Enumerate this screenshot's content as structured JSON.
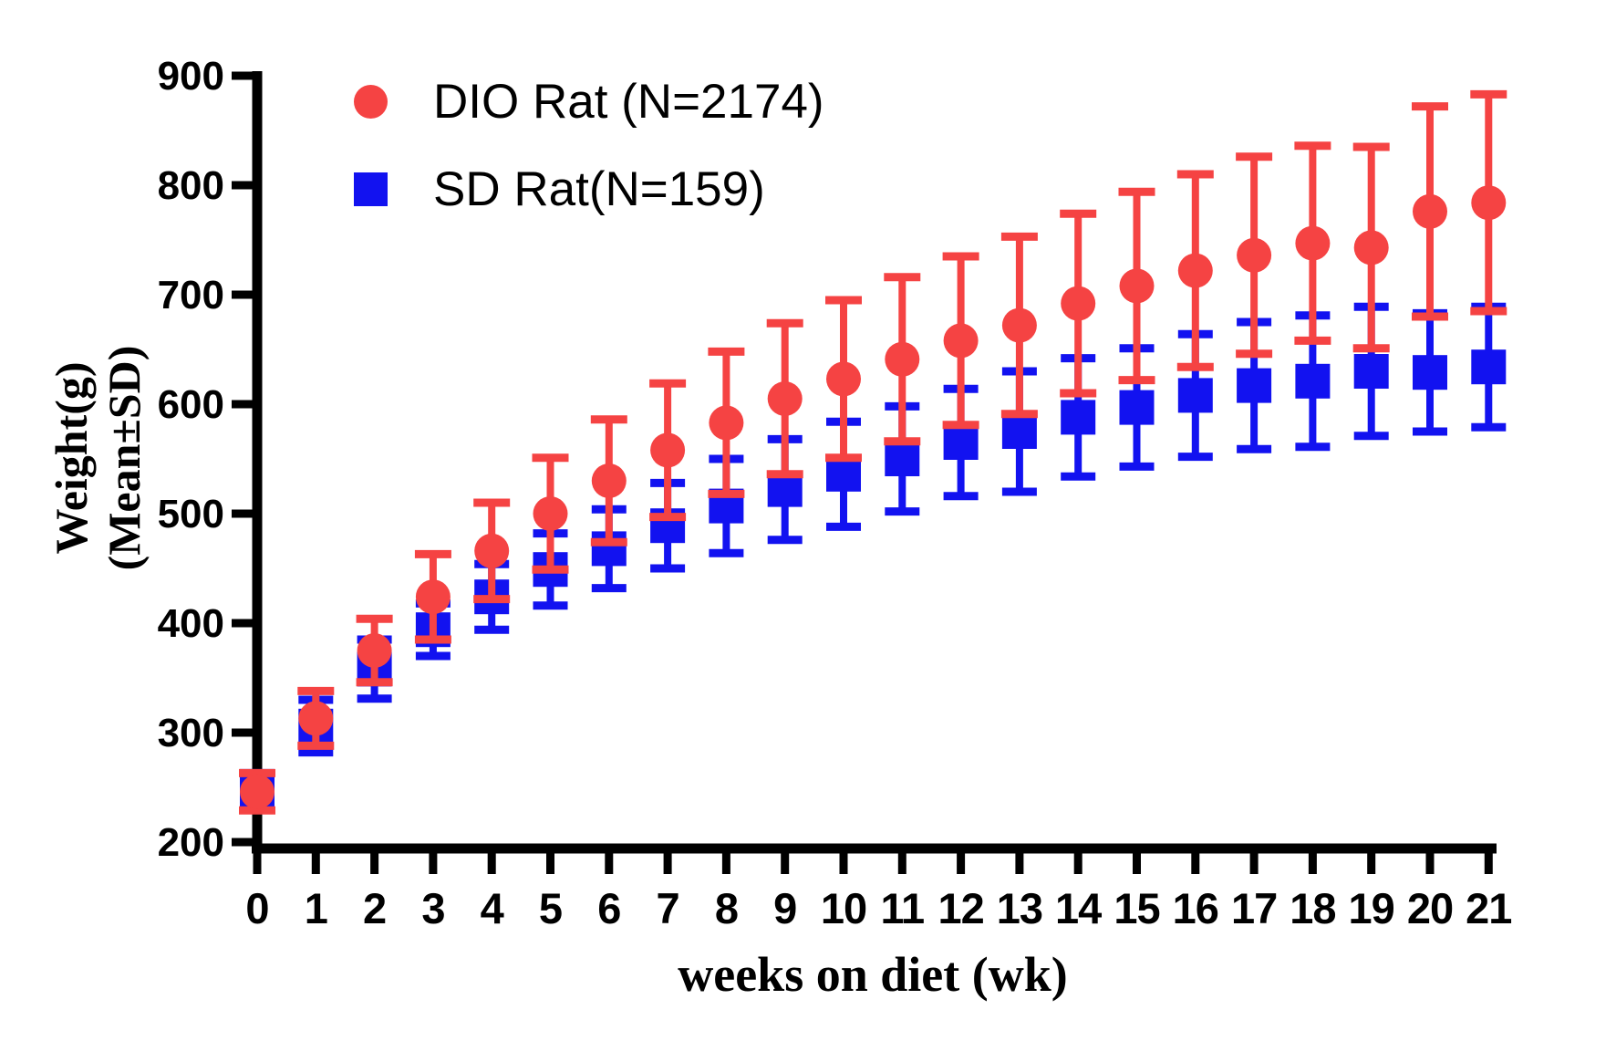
{
  "chart_data": {
    "type": "scatter",
    "title": "",
    "xlabel": "weeks on diet (wk)",
    "ylabel_line1": "Weight(g)",
    "ylabel_line2": "(Mean±SD)",
    "grid": false,
    "legend_position": "top-left-inside",
    "xlim": [
      0,
      21
    ],
    "ylim": [
      200,
      900
    ],
    "xticks": [
      0,
      1,
      2,
      3,
      4,
      5,
      6,
      7,
      8,
      9,
      10,
      11,
      12,
      13,
      14,
      15,
      16,
      17,
      18,
      19,
      20,
      21
    ],
    "yticks": [
      200,
      300,
      400,
      500,
      600,
      700,
      800,
      900
    ],
    "x": [
      0,
      1,
      2,
      3,
      4,
      5,
      6,
      7,
      8,
      9,
      10,
      11,
      12,
      13,
      14,
      15,
      16,
      17,
      18,
      19,
      20,
      21
    ],
    "series": [
      {
        "name": "SD Rat(N=159)",
        "marker": "square",
        "color": "#1212F0",
        "mean": [
          247,
          306,
          358,
          394,
          424,
          449,
          468,
          489,
          507,
          522,
          536,
          550,
          565,
          575,
          588,
          597,
          608,
          617,
          621,
          630,
          629,
          634
        ],
        "sd": [
          16,
          24,
          27,
          24,
          30,
          33,
          36,
          39,
          43,
          46,
          48,
          48,
          49,
          55,
          54,
          54,
          56,
          58,
          60,
          59,
          54,
          55
        ]
      },
      {
        "name": "DIO Rat (N=2174)",
        "marker": "circle",
        "color": "#F54343",
        "mean": [
          246,
          313,
          375,
          424,
          466,
          500,
          530,
          558,
          583,
          605,
          623,
          641,
          658,
          672,
          692,
          708,
          722,
          736,
          747,
          743,
          776,
          784
        ],
        "sd": [
          17,
          25,
          29,
          39,
          44,
          51,
          56,
          61,
          65,
          69,
          72,
          75,
          77,
          81,
          82,
          86,
          88,
          90,
          89,
          92,
          96,
          99
        ]
      }
    ],
    "legend_order": [
      "DIO Rat (N=2174)",
      "SD Rat(N=159)"
    ]
  }
}
